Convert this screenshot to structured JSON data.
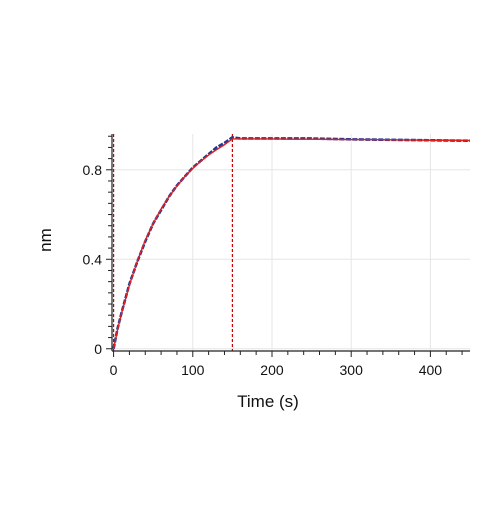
{
  "chart_data": {
    "type": "line",
    "title": "",
    "xlabel": "Time (s)",
    "ylabel": "nm",
    "xlim": [
      -2,
      450
    ],
    "ylim": [
      -0.01,
      0.96
    ],
    "x_ticks": [
      0,
      100,
      200,
      300,
      400
    ],
    "x_tick_labels": [
      "0",
      "100",
      "200",
      "300",
      "400"
    ],
    "y_ticks": [
      0,
      0.4,
      0.8
    ],
    "y_tick_labels": [
      "0",
      "0.4",
      "0.8"
    ],
    "grid": true,
    "legend": "none",
    "vertical_markers": [
      {
        "x": 0,
        "color": "#cc0000",
        "style": "dashed"
      },
      {
        "x": 150,
        "color": "#cc0000",
        "style": "dashed"
      }
    ],
    "series": [
      {
        "role": "measured",
        "color": "#1f3a93",
        "x": [
          0,
          5,
          10,
          20,
          30,
          40,
          50,
          60,
          70,
          80,
          90,
          100,
          110,
          120,
          130,
          140,
          150,
          160,
          180,
          200,
          225,
          250,
          275,
          300,
          325,
          350,
          375,
          400,
          425,
          450
        ],
        "y": [
          0.0,
          0.09,
          0.16,
          0.29,
          0.39,
          0.48,
          0.56,
          0.62,
          0.68,
          0.73,
          0.77,
          0.81,
          0.84,
          0.87,
          0.9,
          0.92,
          0.945,
          0.94,
          0.94,
          0.94,
          0.94,
          0.94,
          0.938,
          0.936,
          0.935,
          0.934,
          0.933,
          0.932,
          0.931,
          0.93
        ]
      },
      {
        "role": "fit",
        "color": "#e02020",
        "x": [
          0,
          5,
          10,
          20,
          30,
          40,
          50,
          60,
          70,
          80,
          90,
          100,
          110,
          120,
          130,
          140,
          150,
          160,
          180,
          200,
          225,
          250,
          275,
          300,
          325,
          350,
          375,
          400,
          425,
          450
        ],
        "y": [
          0.0,
          0.085,
          0.158,
          0.285,
          0.392,
          0.485,
          0.56,
          0.625,
          0.68,
          0.728,
          0.77,
          0.806,
          0.838,
          0.866,
          0.89,
          0.912,
          0.938,
          0.938,
          0.938,
          0.938,
          0.937,
          0.937,
          0.936,
          0.935,
          0.935,
          0.934,
          0.933,
          0.932,
          0.932,
          0.931
        ]
      }
    ]
  },
  "colors": {
    "grid": "#e6e6e6",
    "axis": "#222222",
    "marker": "#cc0000"
  }
}
